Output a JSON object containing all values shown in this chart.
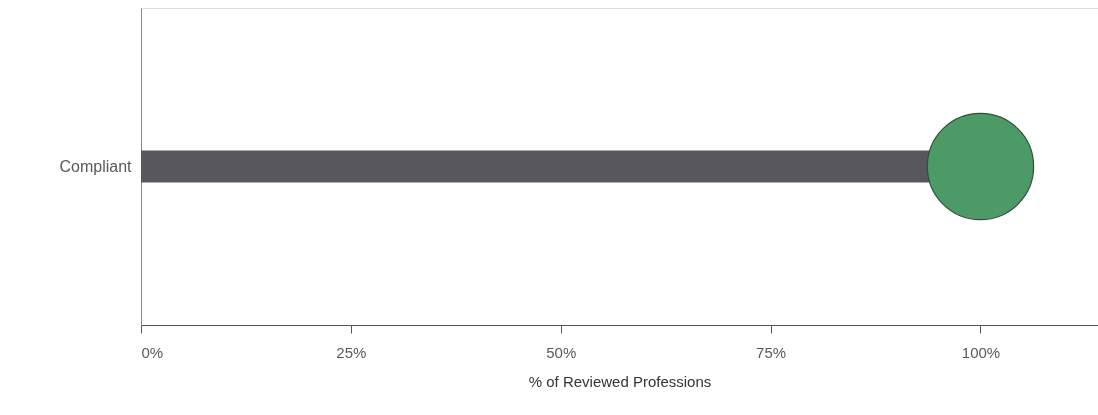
{
  "chart_data": {
    "type": "lollipop",
    "orientation": "horizontal",
    "xlabel": "% of Reviewed Professions",
    "categories": [
      "Compliant"
    ],
    "series": [
      {
        "color": "#4c9a65",
        "values": [
          100
        ]
      }
    ],
    "xlim": [
      0,
      114
    ],
    "xticks": [
      {
        "value": 0,
        "label": "0%"
      },
      {
        "value": 25,
        "label": "25%"
      },
      {
        "value": 50,
        "label": "50%"
      },
      {
        "value": 75,
        "label": "75%"
      },
      {
        "value": 100,
        "label": "100%"
      }
    ],
    "grid": false
  }
}
